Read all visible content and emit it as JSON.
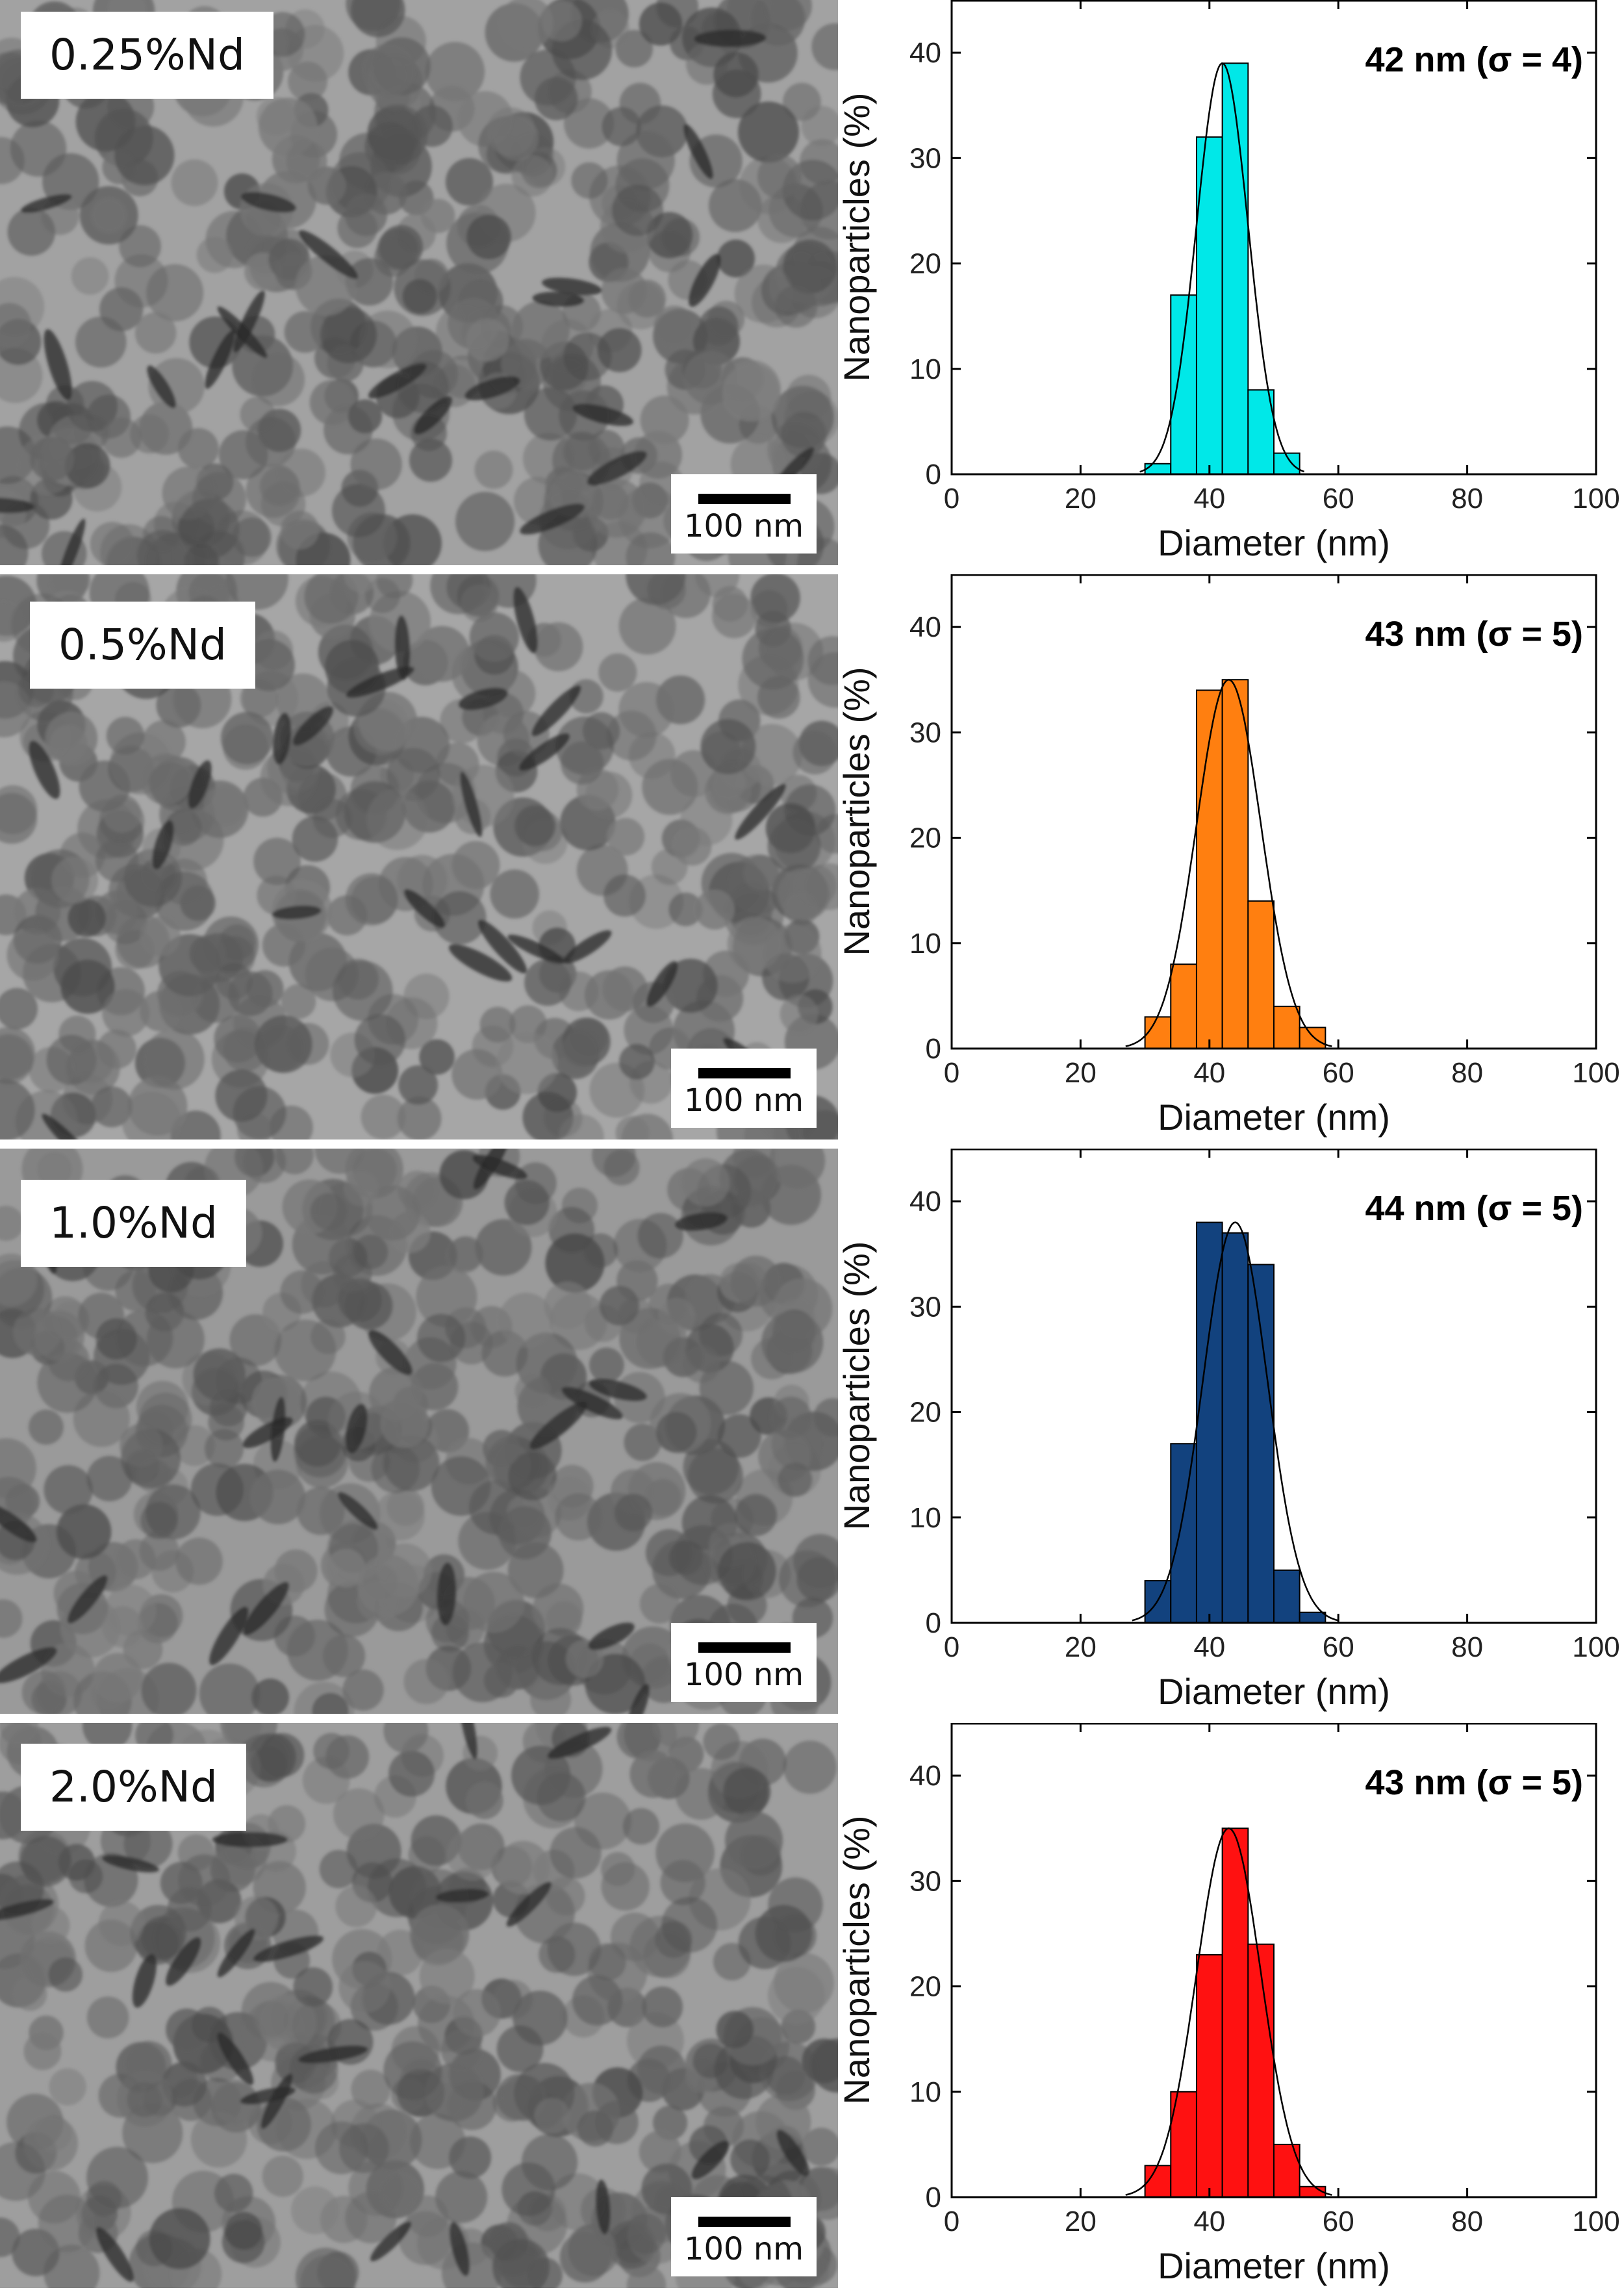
{
  "panels": [
    {
      "sample_label": "0.25%Nd",
      "scale_bar": "100 nm",
      "tone": "#a2a2a2",
      "chart_data": {
        "type": "bar",
        "bar_color": "#00e8e8",
        "annotation": {
          "value": "42  nm",
          "sigma": "(σ = 4)"
        },
        "xlabel": "Diameter (nm)",
        "ylabel": "Nanoparticles (%)",
        "xlim": [
          0,
          100
        ],
        "ylim": [
          0,
          45
        ],
        "xticks": [
          0,
          20,
          40,
          60,
          80,
          100
        ],
        "yticks": [
          0,
          10,
          20,
          30,
          40
        ],
        "bin_width": 4,
        "bins": [
          {
            "x0": 30,
            "value": 1
          },
          {
            "x0": 34,
            "value": 17
          },
          {
            "x0": 38,
            "value": 32
          },
          {
            "x0": 42,
            "value": 39
          },
          {
            "x0": 46,
            "value": 8
          },
          {
            "x0": 50,
            "value": 2
          }
        ],
        "fit": {
          "mean": 42,
          "sigma": 4,
          "peak": 39
        }
      }
    },
    {
      "sample_label": "0.5%Nd",
      "scale_bar": "100 nm",
      "tone": "#a6a6a6",
      "chart_data": {
        "type": "bar",
        "bar_color": "#ff7f10",
        "annotation": {
          "value": "43  nm",
          "sigma": "(σ = 5)"
        },
        "xlabel": "Diameter (nm)",
        "ylabel": "Nanoparticles (%)",
        "xlim": [
          0,
          100
        ],
        "ylim": [
          0,
          45
        ],
        "xticks": [
          0,
          20,
          40,
          60,
          80,
          100
        ],
        "yticks": [
          0,
          10,
          20,
          30,
          40
        ],
        "bin_width": 4,
        "bins": [
          {
            "x0": 30,
            "value": 3
          },
          {
            "x0": 34,
            "value": 8
          },
          {
            "x0": 38,
            "value": 34
          },
          {
            "x0": 42,
            "value": 35
          },
          {
            "x0": 46,
            "value": 14
          },
          {
            "x0": 50,
            "value": 4
          },
          {
            "x0": 54,
            "value": 2
          }
        ],
        "fit": {
          "mean": 43,
          "sigma": 5,
          "peak": 35
        }
      }
    },
    {
      "sample_label": "1.0%Nd",
      "scale_bar": "100 nm",
      "tone": "#9a9a9a",
      "chart_data": {
        "type": "bar",
        "bar_color": "#12427e",
        "annotation": {
          "value": "44  nm",
          "sigma": "(σ = 5)"
        },
        "xlabel": "Diameter (nm)",
        "ylabel": "Nanoparticles (%)",
        "xlim": [
          0,
          100
        ],
        "ylim": [
          0,
          45
        ],
        "xticks": [
          0,
          20,
          40,
          60,
          80,
          100
        ],
        "yticks": [
          0,
          10,
          20,
          30,
          40
        ],
        "bin_width": 4,
        "bins": [
          {
            "x0": 30,
            "value": 4
          },
          {
            "x0": 34,
            "value": 17
          },
          {
            "x0": 38,
            "value": 38
          },
          {
            "x0": 42,
            "value": 37
          },
          {
            "x0": 46,
            "value": 34
          },
          {
            "x0": 50,
            "value": 5
          },
          {
            "x0": 54,
            "value": 1
          }
        ],
        "fit": {
          "mean": 44,
          "sigma": 5,
          "peak": 38
        }
      }
    },
    {
      "sample_label": "2.0%Nd",
      "scale_bar": "100 nm",
      "tone": "#9e9e9e",
      "chart_data": {
        "type": "bar",
        "bar_color": "#ff1111",
        "annotation": {
          "value": "43  nm",
          "sigma": "(σ = 5)"
        },
        "xlabel": "Diameter (nm)",
        "ylabel": "Nanoparticles (%)",
        "xlim": [
          0,
          100
        ],
        "ylim": [
          0,
          45
        ],
        "xticks": [
          0,
          20,
          40,
          60,
          80,
          100
        ],
        "yticks": [
          0,
          10,
          20,
          30,
          40
        ],
        "bin_width": 4,
        "bins": [
          {
            "x0": 30,
            "value": 3
          },
          {
            "x0": 34,
            "value": 10
          },
          {
            "x0": 38,
            "value": 23
          },
          {
            "x0": 42,
            "value": 35
          },
          {
            "x0": 46,
            "value": 24
          },
          {
            "x0": 50,
            "value": 5
          },
          {
            "x0": 54,
            "value": 1
          }
        ],
        "fit": {
          "mean": 43,
          "sigma": 5,
          "peak": 35
        }
      }
    }
  ]
}
